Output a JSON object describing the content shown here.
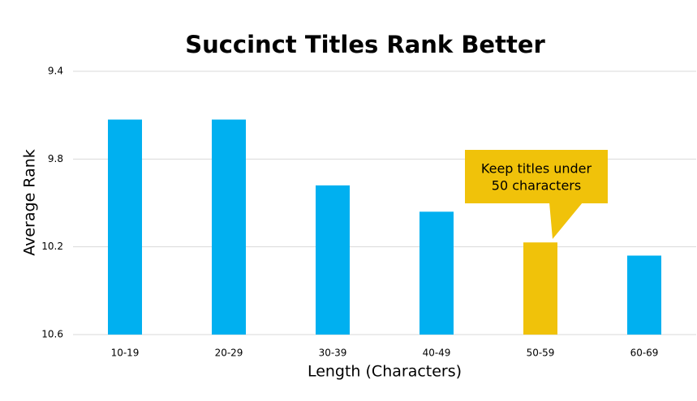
{
  "chart_data": {
    "type": "bar",
    "title": "Succinct Titles Rank Better",
    "x_label": "Length (Characters)",
    "y_label": "Average Rank",
    "categories": [
      "10-19",
      "20-29",
      "30-39",
      "40-49",
      "50-59",
      "60-69"
    ],
    "values": [
      9.62,
      9.62,
      9.92,
      10.04,
      10.18,
      10.24
    ],
    "colors": [
      "#00b0f0",
      "#00b0f0",
      "#00b0f0",
      "#00b0f0",
      "#f0c20a",
      "#00b0f0"
    ],
    "ylim": [
      9.4,
      10.6
    ],
    "yticks": [
      9.4,
      9.8,
      10.2,
      10.6
    ],
    "y_inverted": true,
    "grid": true,
    "annotation": {
      "lines": [
        "Keep titles under",
        "50 characters"
      ],
      "color": "#f0c20a"
    }
  }
}
